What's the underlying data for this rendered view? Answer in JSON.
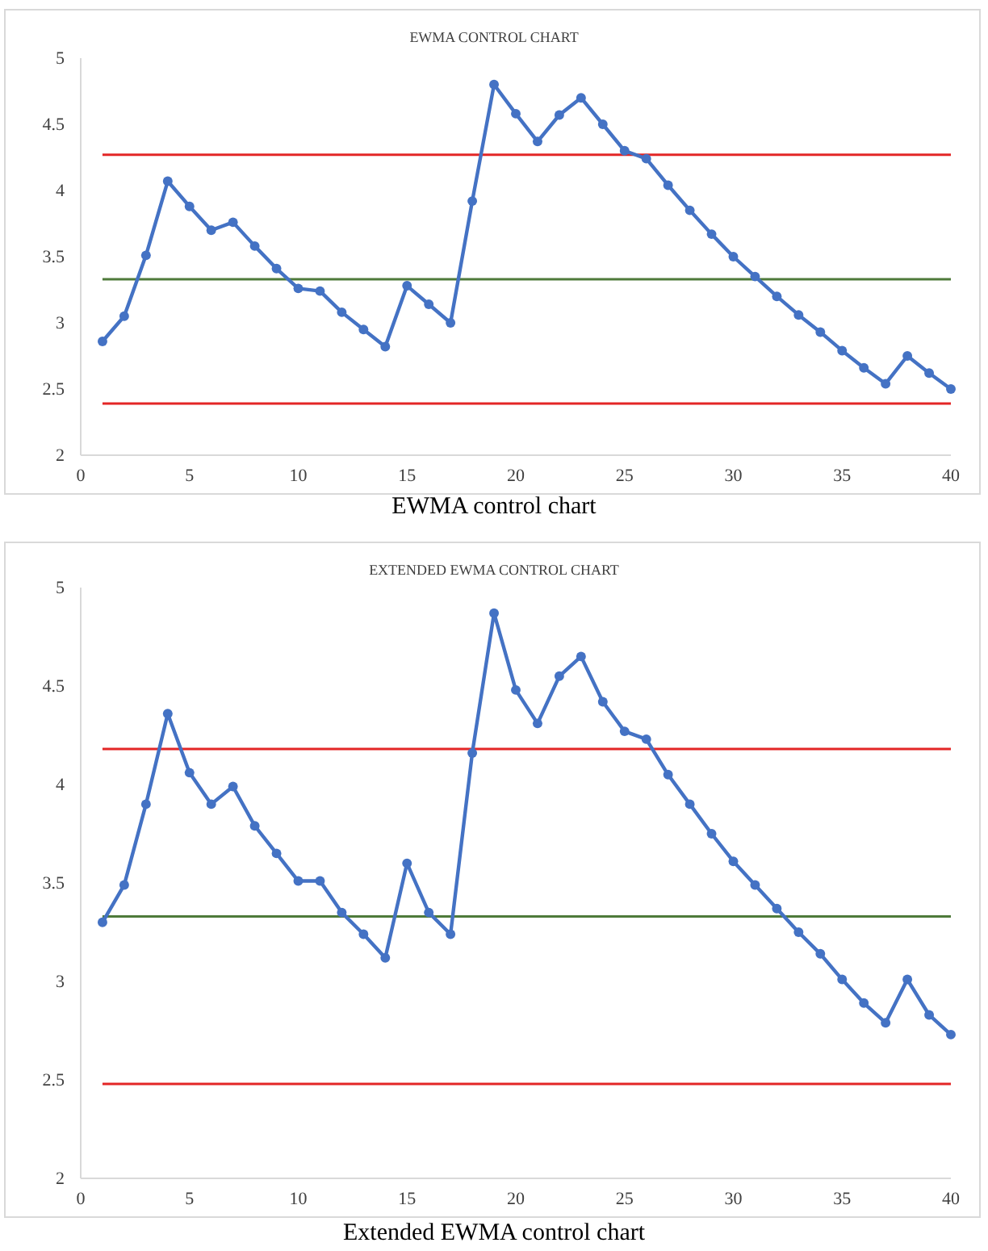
{
  "chart_data": [
    {
      "type": "line",
      "title": "EWMA CONTROL CHART",
      "annotations": [
        "EWMA control chart"
      ],
      "x": [
        1,
        2,
        3,
        4,
        5,
        6,
        7,
        8,
        9,
        10,
        11,
        12,
        13,
        14,
        15,
        16,
        17,
        18,
        19,
        20,
        21,
        22,
        23,
        24,
        25,
        26,
        27,
        28,
        29,
        30,
        31,
        32,
        33,
        34,
        35,
        36,
        37,
        38,
        39,
        40
      ],
      "series": [
        {
          "color": "#4472c4",
          "values": [
            2.86,
            3.05,
            3.51,
            4.07,
            3.88,
            3.7,
            3.76,
            3.58,
            3.41,
            3.26,
            3.24,
            3.08,
            2.95,
            2.82,
            3.28,
            3.14,
            3.0,
            3.92,
            4.8,
            4.58,
            4.37,
            4.57,
            4.7,
            4.5,
            4.3,
            4.24,
            4.04,
            3.85,
            3.67,
            3.5,
            3.35,
            3.2,
            3.06,
            2.93,
            2.79,
            2.66,
            2.54,
            2.75,
            2.62,
            2.5
          ]
        }
      ],
      "xlim": [
        0,
        40
      ],
      "xticks": [
        0,
        5,
        10,
        15,
        20,
        25,
        30,
        35,
        40
      ],
      "ylim": [
        2,
        5
      ],
      "yticks": [
        2,
        {
          "value": 2.5,
          "label": "2.5"
        },
        3,
        {
          "value": 3.5,
          "label": "3.5"
        },
        4,
        {
          "value": 4.5,
          "label": "4.5"
        },
        5
      ],
      "ref_lines": [
        {
          "axis": "y",
          "value": 4.27,
          "color": "#e32626"
        },
        {
          "axis": "y",
          "value": 3.33,
          "color": "#4e7a3a"
        },
        {
          "axis": "y",
          "value": 2.39,
          "color": "#e32626"
        }
      ],
      "marker": "circle",
      "line_style": "solid",
      "grid": false
    },
    {
      "type": "line",
      "title": "EXTENDED EWMA CONTROL CHART",
      "annotations": [
        "Extended EWMA control chart"
      ],
      "x": [
        1,
        2,
        3,
        4,
        5,
        6,
        7,
        8,
        9,
        10,
        11,
        12,
        13,
        14,
        15,
        16,
        17,
        18,
        19,
        20,
        21,
        22,
        23,
        24,
        25,
        26,
        27,
        28,
        29,
        30,
        31,
        32,
        33,
        34,
        35,
        36,
        37,
        38,
        39,
        40
      ],
      "series": [
        {
          "color": "#4472c4",
          "values": [
            3.3,
            3.49,
            3.9,
            4.36,
            4.06,
            3.9,
            3.99,
            3.79,
            3.65,
            3.51,
            3.51,
            3.35,
            3.24,
            3.12,
            3.6,
            3.35,
            3.24,
            4.16,
            4.87,
            4.48,
            4.31,
            4.55,
            4.65,
            4.42,
            4.27,
            4.23,
            4.05,
            3.9,
            3.75,
            3.61,
            3.49,
            3.37,
            3.25,
            3.14,
            3.01,
            2.89,
            2.79,
            3.01,
            2.83,
            2.73
          ]
        }
      ],
      "xlim": [
        0,
        40
      ],
      "xticks": [
        0,
        5,
        10,
        15,
        20,
        25,
        30,
        35,
        40
      ],
      "ylim": [
        2,
        5
      ],
      "yticks": [
        2,
        {
          "value": 2.5,
          "label": "2.5"
        },
        3,
        {
          "value": 3.5,
          "label": "3.5"
        },
        4,
        {
          "value": 4.5,
          "label": "4.5"
        },
        5
      ],
      "ref_lines": [
        {
          "axis": "y",
          "value": 4.18,
          "color": "#e32626"
        },
        {
          "axis": "y",
          "value": 3.33,
          "color": "#4e7a3a"
        },
        {
          "axis": "y",
          "value": 2.48,
          "color": "#e32626"
        }
      ],
      "marker": "circle",
      "line_style": "solid",
      "grid": false
    }
  ]
}
